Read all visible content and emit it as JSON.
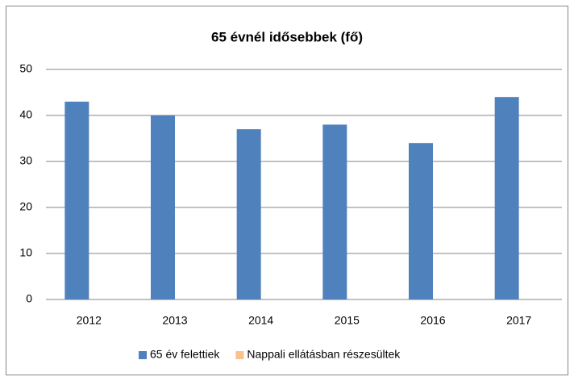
{
  "chart_data": {
    "type": "bar",
    "title": "65 évnél idősebbek (fő)",
    "categories": [
      "2012",
      "2013",
      "2014",
      "2015",
      "2016",
      "2017"
    ],
    "series": [
      {
        "name": "65 év felettiek",
        "color": "#4f81bd",
        "values": [
          43,
          40,
          37,
          38,
          34,
          44
        ]
      },
      {
        "name": "Nappali ellátásban részesültek",
        "color": "#fac090",
        "values": [
          0,
          0,
          0,
          0,
          0,
          0
        ]
      }
    ],
    "ylim": [
      0,
      50
    ],
    "yticks": [
      0,
      10,
      20,
      30,
      40,
      50
    ],
    "grid": true,
    "legend": "bottom"
  }
}
